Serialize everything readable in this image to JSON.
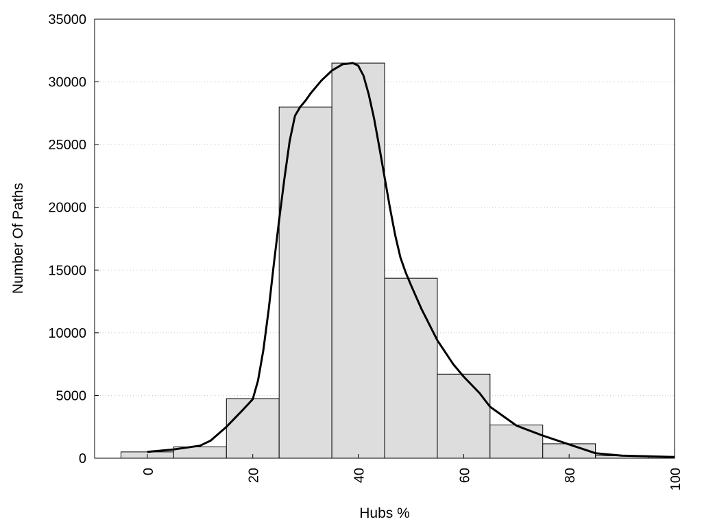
{
  "chart_data": {
    "type": "bar",
    "title": "",
    "xlabel": "Hubs %",
    "ylabel": "Number Of Paths",
    "xlim": [
      -10,
      100
    ],
    "ylim": [
      0,
      35000
    ],
    "grid": true,
    "legend": "none",
    "xticks": [
      "0",
      "20",
      "40",
      "60",
      "80",
      "100"
    ],
    "yticks": [
      "0",
      "5000",
      "10000",
      "15000",
      "20000",
      "25000",
      "30000",
      "35000"
    ],
    "bar_color": "#dddddd",
    "bin_width": 10,
    "bins": [
      {
        "center": 0,
        "value": 500
      },
      {
        "center": 10,
        "value": 900
      },
      {
        "center": 20,
        "value": 4750
      },
      {
        "center": 30,
        "value": 28000
      },
      {
        "center": 40,
        "value": 31500
      },
      {
        "center": 50,
        "value": 14350
      },
      {
        "center": 60,
        "value": 6700
      },
      {
        "center": 70,
        "value": 2650
      },
      {
        "center": 80,
        "value": 1150
      },
      {
        "center": 90,
        "value": 200
      },
      {
        "center": 100,
        "value": 100
      }
    ],
    "curve": {
      "x": [
        0,
        5,
        10,
        12,
        15,
        18,
        20,
        21,
        22,
        23,
        24,
        25,
        26,
        27,
        28,
        29,
        30,
        31,
        33,
        35,
        37,
        39,
        40,
        41,
        42,
        43,
        44,
        45,
        46,
        47,
        48,
        49,
        50,
        52,
        55,
        58,
        60,
        63,
        65,
        68,
        70,
        75,
        80,
        85,
        90,
        95,
        100
      ],
      "y": [
        500,
        700,
        1000,
        1400,
        2500,
        3800,
        4700,
        6200,
        8600,
        11800,
        15500,
        19000,
        22300,
        25300,
        27300,
        28000,
        28500,
        29100,
        30100,
        30900,
        31400,
        31500,
        31300,
        30500,
        29000,
        27100,
        24800,
        22400,
        20000,
        17800,
        16000,
        14800,
        13800,
        11900,
        9400,
        7500,
        6500,
        5200,
        4100,
        3200,
        2600,
        1800,
        1100,
        400,
        200,
        150,
        100
      ]
    }
  }
}
